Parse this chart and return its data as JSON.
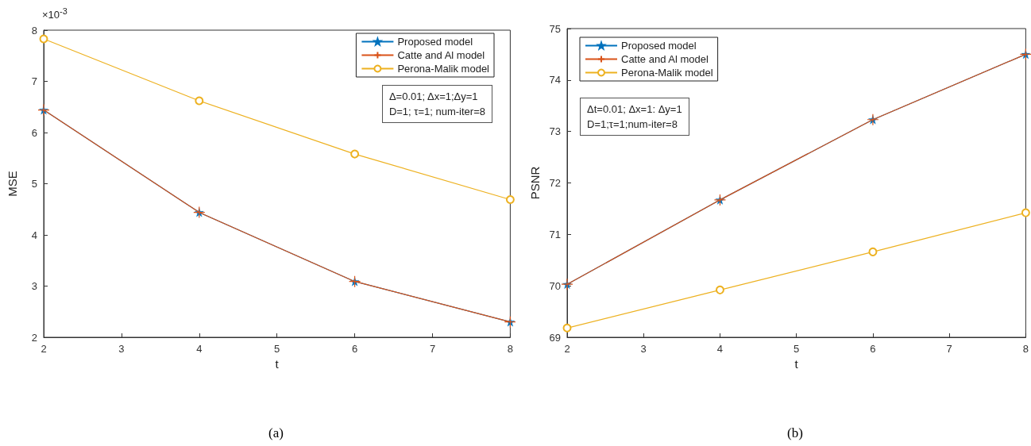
{
  "chart_data": [
    {
      "type": "line",
      "xlabel": "t",
      "ylabel": "MSE",
      "x": [
        2,
        4,
        6,
        8
      ],
      "series": [
        {
          "name": "Proposed model",
          "color": "#0072bd",
          "marker": "star",
          "values": [
            6.44,
            4.44,
            3.09,
            2.3
          ]
        },
        {
          "name": "Catte and Al model",
          "color": "#d95319",
          "marker": "cross",
          "values": [
            6.44,
            4.44,
            3.09,
            2.3
          ]
        },
        {
          "name": "Perona-Malik model",
          "color": "#edb120",
          "marker": "circle",
          "values": [
            7.83,
            6.62,
            5.58,
            4.69
          ]
        }
      ],
      "xlim": [
        2,
        8
      ],
      "xticks": [
        2,
        3,
        4,
        5,
        6,
        7,
        8
      ],
      "ylim": [
        2,
        8
      ],
      "yticks": [
        2,
        3,
        4,
        5,
        6,
        7,
        8
      ],
      "legend": "top right",
      "annotations": [
        "×10$^{-3}$",
        "Δ=0.01; Δx=1;Δy=1\nD=1; τ=1; num-iter=8",
        "(a)"
      ]
    },
    {
      "type": "line",
      "xlabel": "t",
      "ylabel": "PSNR",
      "x": [
        2,
        4,
        6,
        8
      ],
      "series": [
        {
          "name": "Proposed model",
          "color": "#0072bd",
          "marker": "star",
          "values": [
            70.03,
            71.67,
            73.23,
            74.5
          ]
        },
        {
          "name": "Catte and Al model",
          "color": "#d95319",
          "marker": "cross",
          "values": [
            70.03,
            71.67,
            73.23,
            74.5
          ]
        },
        {
          "name": "Perona-Malik model",
          "color": "#edb120",
          "marker": "circle",
          "values": [
            69.18,
            69.92,
            70.66,
            71.42
          ]
        }
      ],
      "xlim": [
        2,
        8
      ],
      "xticks": [
        2,
        3,
        4,
        5,
        6,
        7,
        8
      ],
      "ylim": [
        69,
        75
      ],
      "yticks": [
        69,
        70,
        71,
        72,
        73,
        74,
        75
      ],
      "legend": "top left",
      "annotations": [
        "Δt=0.01; Δx=1: Δy=1\nD=1;τ=1;num-iter=8",
        "(b)"
      ]
    }
  ]
}
